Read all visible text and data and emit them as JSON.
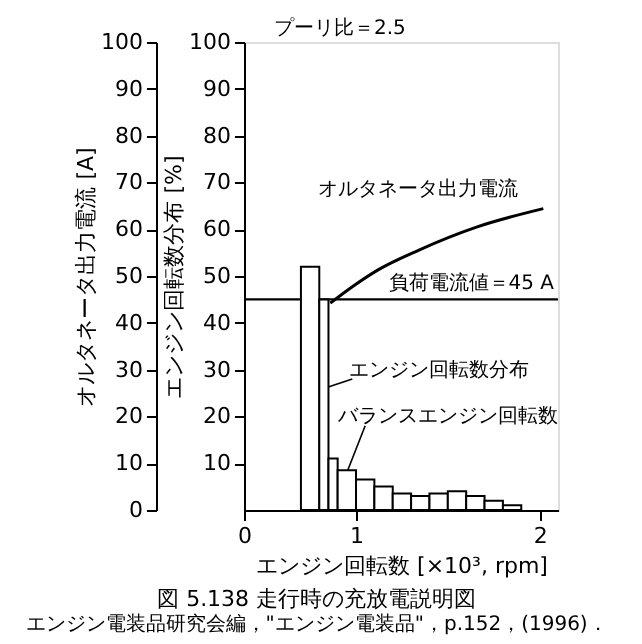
{
  "chart_data": {
    "type": "line",
    "title": "図 5.138 走行時の充放電説明図",
    "subtitle": "エンジン電装品研究会編，\"エンジン電装品\"，p.152，(1996)．",
    "xlabel": "エンジン回転数 [×10³, rpm]",
    "ylabel": "オルタネータ出力電流 [A]",
    "y2label": "エンジン回転数分布 [%]",
    "xlim": [
      0.39,
      2.1
    ],
    "xticks": [
      {
        "value": 0.39,
        "label": "0"
      },
      1,
      2
    ],
    "ylim": [
      0,
      100
    ],
    "yticks": [
      0,
      10,
      20,
      30,
      40,
      50,
      60,
      70,
      80,
      90,
      100
    ],
    "y2lim": [
      0,
      100
    ],
    "y2ticks": [
      10,
      20,
      30,
      40,
      50,
      60,
      70,
      80,
      90,
      100
    ],
    "grid": false,
    "legend": false,
    "marker": "none",
    "line_style": "solid",
    "series": [
      {
        "name": "オルタネータ出力電流",
        "color": "#000000",
        "x": [
          0.86,
          0.98,
          1.12,
          1.34,
          1.66,
          2.02
        ],
        "values": [
          44.2,
          47.7,
          51.3,
          55.5,
          60.5,
          64.4
        ]
      },
      {
        "type": "histogram",
        "color": "#000000",
        "axis": "y2",
        "bins": [
          0.7,
          0.8,
          0.85,
          0.9,
          1.0,
          1.1,
          1.2,
          1.3,
          1.4,
          1.5,
          1.6,
          1.7,
          1.8,
          1.9
        ],
        "values": [
          52,
          45,
          11,
          8.5,
          6.5,
          5,
          3.5,
          3,
          3.5,
          4,
          3,
          2,
          1
        ]
      }
    ],
    "ref_lines": [
      {
        "axis": "y",
        "value": 45,
        "label": "負荷電流値＝45 A",
        "color": "#000000"
      }
    ],
    "annotations": [
      "プーリ比＝2.5",
      {
        "text": "エンジン回転数分布",
        "x": 0.75,
        "y": 25
      },
      {
        "text": "バランスエンジン回転数",
        "x": 0.87,
        "y": 0
      }
    ]
  }
}
